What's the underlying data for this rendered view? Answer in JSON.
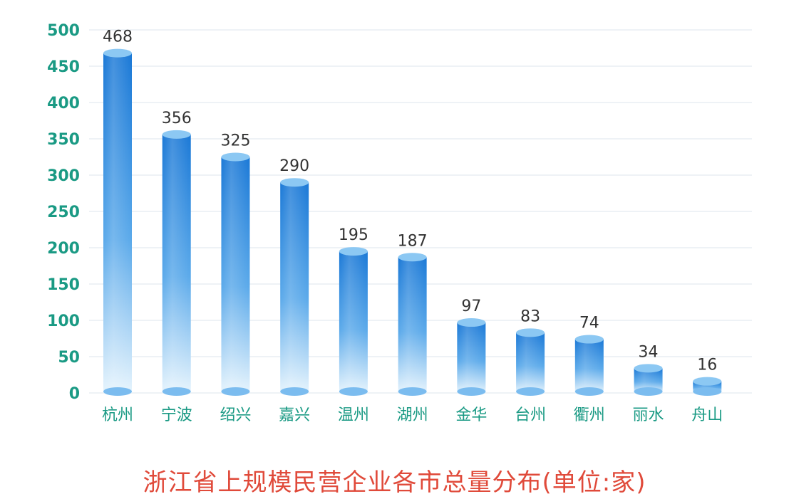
{
  "colors": {
    "bar_dark": "#1a78d6",
    "bar_light": "#e6f4fd",
    "bar_top": "#8cc8f3",
    "tick_label": "#1a9a84",
    "value_label": "#333333",
    "category_label": "#1a9a84",
    "grid": "#e8eef3",
    "title": "#e04a3a"
  },
  "chart_data": {
    "type": "bar",
    "title": "浙江省上规模民营企业各市总量分布(单位:家)",
    "xlabel": "",
    "ylabel": "",
    "ylim": [
      0,
      500
    ],
    "yticks": [
      0,
      50,
      100,
      150,
      200,
      250,
      300,
      350,
      400,
      450,
      500
    ],
    "grid": true,
    "categories": [
      "杭州",
      "宁波",
      "绍兴",
      "嘉兴",
      "温州",
      "湖州",
      "金华",
      "台州",
      "衢州",
      "丽水",
      "舟山"
    ],
    "values": [
      468,
      356,
      325,
      290,
      195,
      187,
      97,
      83,
      74,
      34,
      16
    ]
  }
}
